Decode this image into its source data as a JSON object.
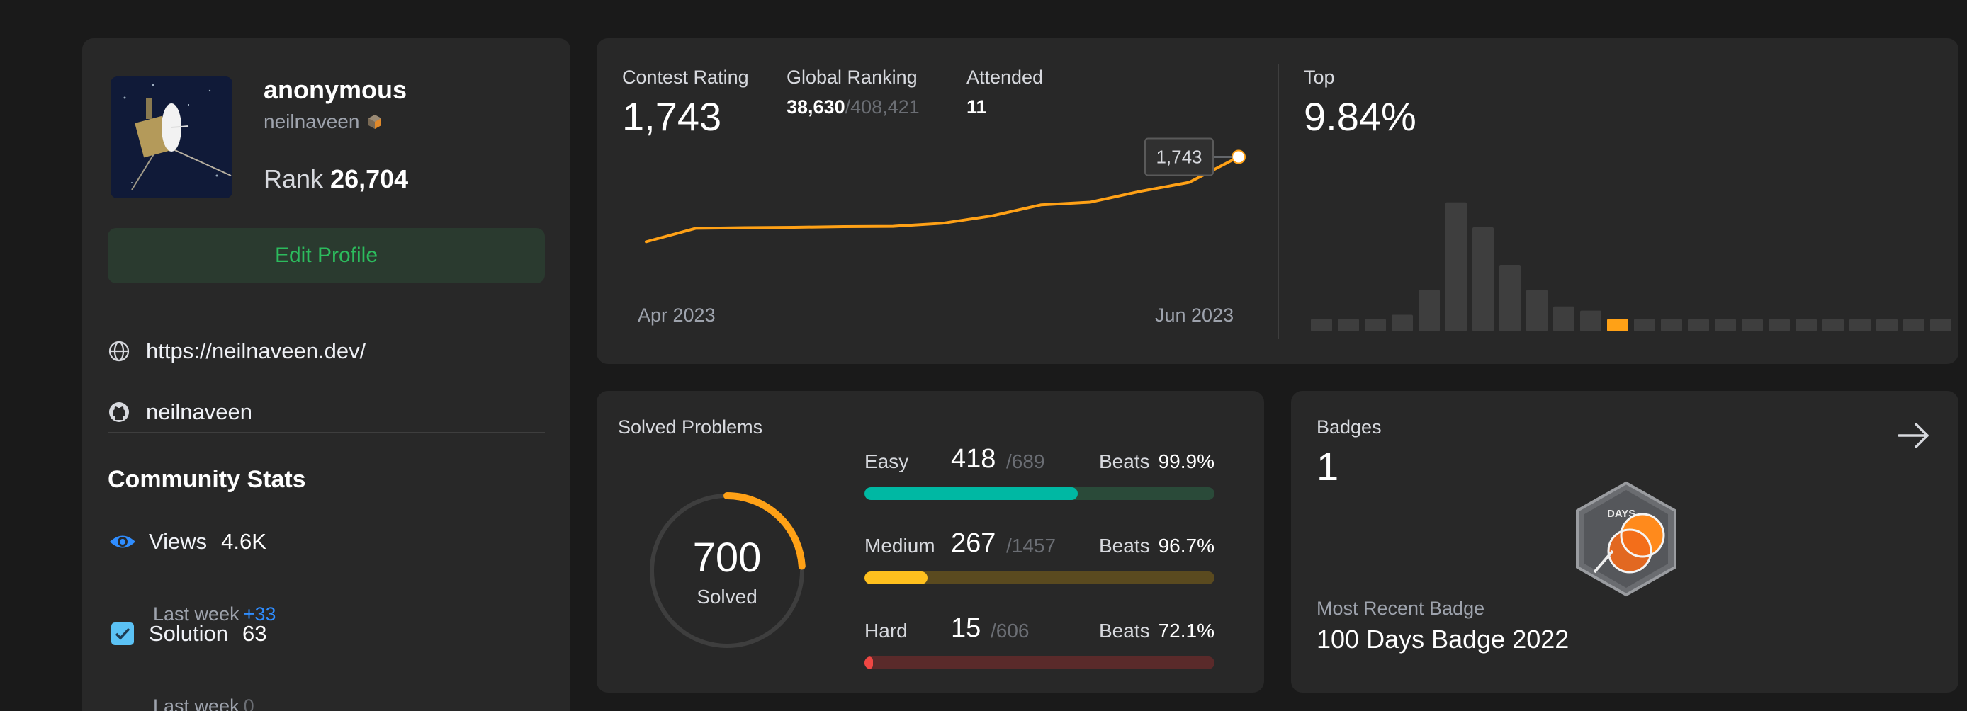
{
  "profile": {
    "name": "anonymous",
    "handle": "neilnaveen",
    "rank_label": "Rank",
    "rank_value": "26,704",
    "edit_label": "Edit Profile",
    "website": "https://neilnaveen.dev/",
    "github": "neilnaveen"
  },
  "community": {
    "title": "Community Stats",
    "views_label": "Views",
    "views_value": "4.6K",
    "views_week_label": "Last week",
    "views_week_value": "+33",
    "solution_label": "Solution",
    "solution_value": "63",
    "solution_week_label": "Last week",
    "solution_week_value": "0"
  },
  "contest": {
    "rating_label": "Contest Rating",
    "rating_value": "1,743",
    "ranking_label": "Global Ranking",
    "ranking_value": "38,630",
    "ranking_total": "/408,421",
    "attended_label": "Attended",
    "attended_value": "11",
    "top_label": "Top",
    "top_value": "9.84%",
    "tooltip": "1,743",
    "x_start": "Apr 2023",
    "x_end": "Jun 2023"
  },
  "chart_data": [
    {
      "type": "line",
      "title": "Contest Rating",
      "x": [
        "Apr 2023",
        "",
        "",
        "",
        "",
        "",
        "",
        "",
        "",
        "",
        "",
        "",
        "Jun 2023"
      ],
      "values": [
        1490,
        1530,
        1532,
        1533,
        1535,
        1536,
        1545,
        1567,
        1600,
        1608,
        1640,
        1667,
        1743
      ],
      "ylim": [
        1400,
        1780
      ],
      "series_color": "#ffa116"
    },
    {
      "type": "bar",
      "title": "Top",
      "values": [
        3,
        3,
        3,
        4,
        10,
        31,
        25,
        16,
        10,
        6,
        5,
        3,
        3,
        3,
        3,
        3,
        3,
        3,
        3,
        3,
        3,
        3,
        3,
        3
      ],
      "highlight_index": 11,
      "ylim": [
        0,
        33
      ]
    }
  ],
  "solved": {
    "title": "Solved Problems",
    "total": "700",
    "total_label": "Solved",
    "fraction": 0.24,
    "easy": {
      "label": "Easy",
      "count": "418",
      "total": "/689",
      "beats_label": "Beats",
      "beats": "99.9%",
      "fraction": 0.61,
      "fill": "#00b8a3",
      "track": "#2a4a39"
    },
    "medium": {
      "label": "Medium",
      "count": "267",
      "total": "/1457",
      "beats_label": "Beats",
      "beats": "96.7%",
      "fraction": 0.18,
      "fill": "#ffc01e",
      "track": "#5a4a1f"
    },
    "hard": {
      "label": "Hard",
      "count": "15",
      "total": "/606",
      "beats_label": "Beats",
      "beats": "72.1%",
      "fraction": 0.025,
      "fill": "#ef4743",
      "track": "#5a2a2a"
    }
  },
  "badges": {
    "title": "Badges",
    "count": "1",
    "recent_label": "Most Recent Badge",
    "recent_name": "100 Days Badge 2022",
    "badge_text": "DAYS"
  }
}
